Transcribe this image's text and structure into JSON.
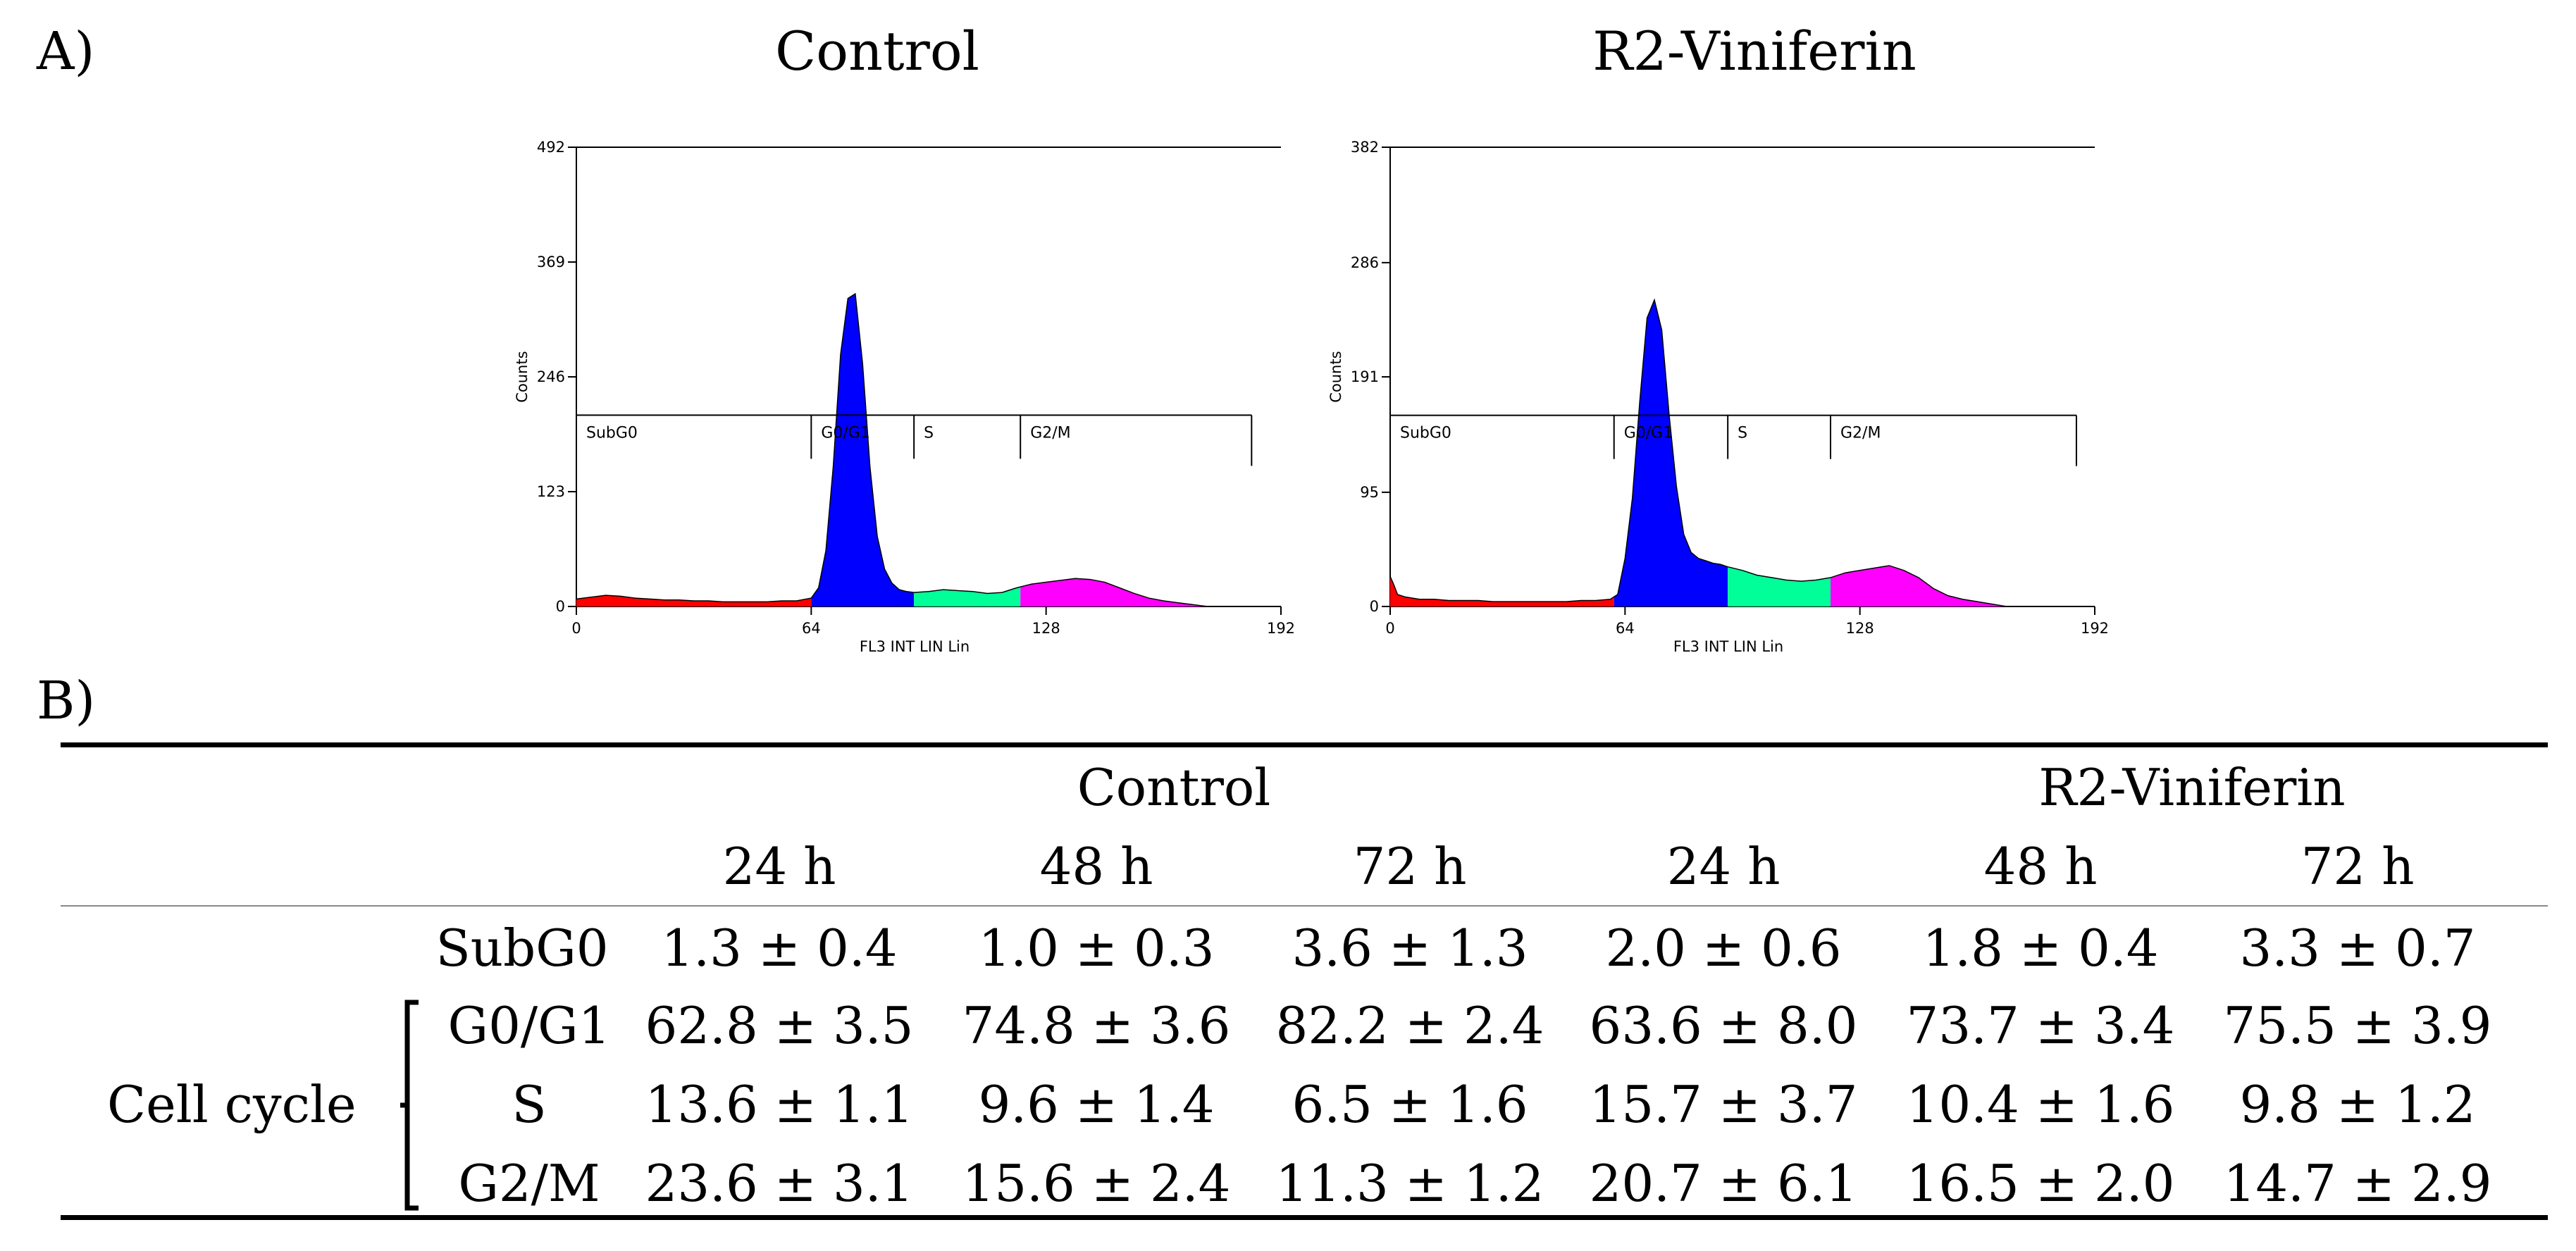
{
  "panel_a_label": "A)",
  "panel_b_label": "B)",
  "chart_data": [
    {
      "type": "histogram",
      "title": "Control",
      "xlabel": "FL3 INT LIN Lin",
      "ylabel": "Counts",
      "xlim": [
        0,
        192
      ],
      "ylim": [
        0,
        492
      ],
      "x_ticks": [
        0,
        64,
        128,
        192
      ],
      "y_ticks": [
        0,
        123,
        246,
        369,
        492
      ],
      "x_tick_labels": [
        "0",
        "64",
        "128",
        "192"
      ],
      "y_tick_labels": [
        "0",
        "123",
        "246",
        "369",
        "492"
      ],
      "gate_height": 205,
      "gates": [
        {
          "label": "SubG0",
          "x_start": 0,
          "x_end": 64,
          "color": "#ff0000"
        },
        {
          "label": "G0/G1",
          "x_start": 64,
          "x_end": 92,
          "color": "#0000ff"
        },
        {
          "label": "S",
          "x_start": 92,
          "x_end": 121,
          "color": "#00ff99"
        },
        {
          "label": "G2/M",
          "x_start": 121,
          "x_end": 184,
          "color": "#ff00ff"
        }
      ],
      "histogram": {
        "x": [
          0,
          4,
          8,
          12,
          16,
          20,
          24,
          28,
          32,
          36,
          40,
          44,
          48,
          52,
          56,
          60,
          64,
          66,
          68,
          70,
          72,
          74,
          76,
          78,
          80,
          82,
          84,
          86,
          88,
          90,
          92,
          96,
          100,
          104,
          108,
          112,
          116,
          120,
          124,
          128,
          132,
          136,
          140,
          144,
          148,
          152,
          156,
          160,
          164,
          168,
          172
        ],
        "y": [
          8,
          10,
          12,
          11,
          9,
          8,
          7,
          7,
          6,
          6,
          5,
          5,
          5,
          5,
          6,
          6,
          9,
          20,
          60,
          150,
          270,
          330,
          335,
          260,
          150,
          75,
          40,
          25,
          18,
          16,
          15,
          16,
          18,
          17,
          16,
          14,
          15,
          20,
          24,
          26,
          28,
          30,
          29,
          26,
          20,
          14,
          9,
          6,
          4,
          2,
          0
        ]
      }
    },
    {
      "type": "histogram",
      "title": "R2-Viniferin",
      "xlabel": "FL3 INT LIN Lin",
      "ylabel": "Counts",
      "xlim": [
        0,
        192
      ],
      "ylim": [
        0,
        382
      ],
      "x_ticks": [
        0,
        64,
        128,
        192
      ],
      "y_ticks": [
        0,
        95,
        191,
        286,
        382
      ],
      "x_tick_labels": [
        "0",
        "64",
        "128",
        "192"
      ],
      "y_tick_labels": [
        "0",
        "95",
        "191",
        "286",
        "382"
      ],
      "gate_height": 159,
      "gates": [
        {
          "label": "SubG0",
          "x_start": 0,
          "x_end": 61,
          "color": "#ff0000"
        },
        {
          "label": "G0/G1",
          "x_start": 61,
          "x_end": 92,
          "color": "#0000ff"
        },
        {
          "label": "S",
          "x_start": 92,
          "x_end": 120,
          "color": "#00ff99"
        },
        {
          "label": "G2/M",
          "x_start": 120,
          "x_end": 187,
          "color": "#ff00ff"
        }
      ],
      "histogram": {
        "x": [
          0,
          1,
          2,
          4,
          8,
          12,
          16,
          20,
          24,
          28,
          32,
          36,
          40,
          44,
          48,
          52,
          56,
          60,
          62,
          64,
          66,
          68,
          70,
          72,
          74,
          76,
          78,
          80,
          82,
          84,
          86,
          88,
          90,
          92,
          96,
          100,
          104,
          108,
          112,
          116,
          120,
          124,
          128,
          132,
          136,
          140,
          144,
          148,
          152,
          156,
          160,
          164,
          168
        ],
        "y": [
          25,
          18,
          10,
          8,
          6,
          6,
          5,
          5,
          5,
          4,
          4,
          4,
          4,
          4,
          4,
          5,
          5,
          6,
          10,
          40,
          90,
          170,
          240,
          255,
          230,
          160,
          100,
          60,
          45,
          40,
          38,
          36,
          35,
          33,
          30,
          26,
          24,
          22,
          21,
          22,
          24,
          28,
          30,
          32,
          34,
          30,
          24,
          15,
          9,
          6,
          4,
          2,
          0
        ]
      }
    },
    {
      "type": "table",
      "group_headers": [
        "Control",
        "R2-Viniferin"
      ],
      "time_headers": [
        "24 h",
        "48 h",
        "72 h",
        "24 h",
        "48 h",
        "72 h"
      ],
      "row_group_label": "Cell cycle",
      "rows": [
        {
          "label": "SubG0",
          "values": [
            "1.3 ± 0.4",
            "1.0 ± 0.3",
            "3.6 ± 1.3",
            "2.0 ± 0.6",
            "1.8 ± 0.4",
            "3.3 ± 0.7"
          ]
        },
        {
          "label": "G0/G1",
          "values": [
            "62.8 ± 3.5",
            "74.8 ± 3.6",
            "82.2 ± 2.4",
            "63.6 ± 8.0",
            "73.7 ± 3.4",
            "75.5 ± 3.9"
          ]
        },
        {
          "label": "S",
          "values": [
            "13.6 ± 1.1",
            "9.6 ± 1.4",
            "6.5 ± 1.6",
            "15.7 ± 3.7",
            "10.4 ± 1.6",
            "9.8 ± 1.2"
          ]
        },
        {
          "label": "G2/M",
          "values": [
            "23.6 ± 3.1",
            "15.6 ± 2.4",
            "11.3 ± 1.2",
            "20.7 ± 6.1",
            "16.5 ± 2.0",
            "14.7 ± 2.9"
          ]
        }
      ]
    }
  ]
}
